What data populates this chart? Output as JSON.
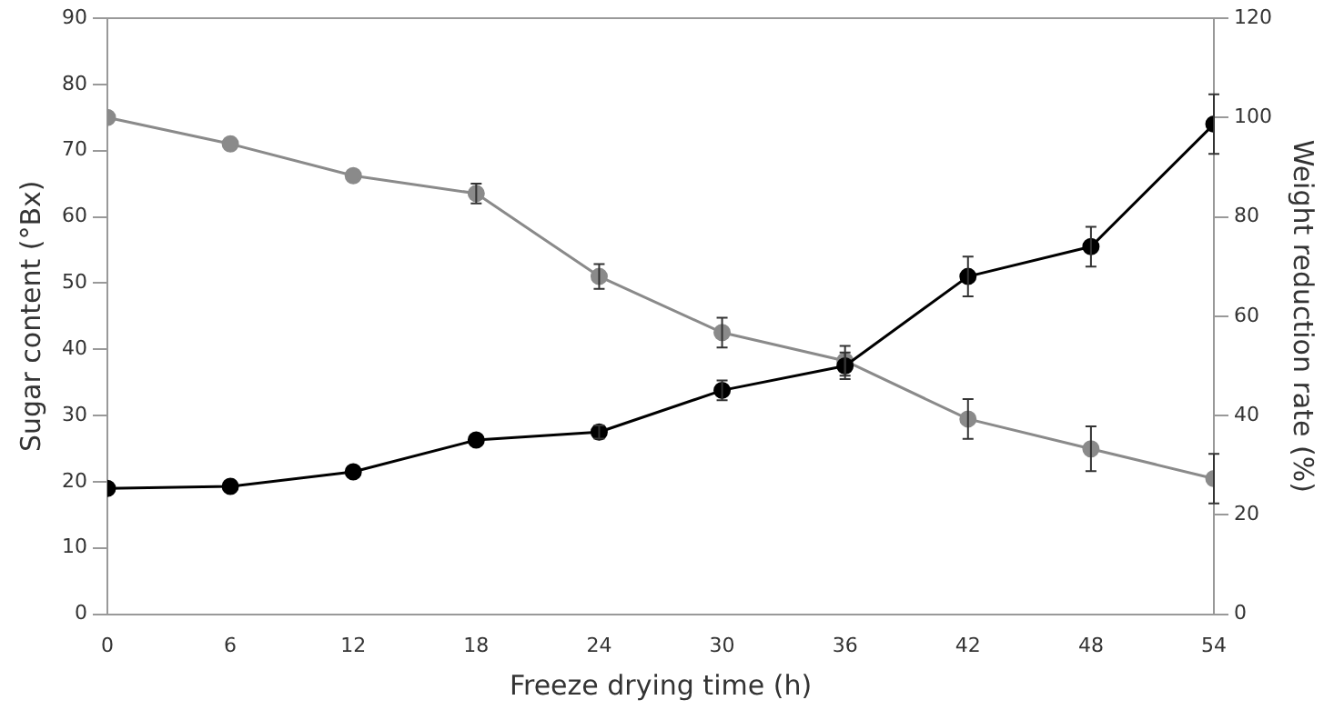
{
  "chart_data": {
    "type": "line",
    "xlabel": "Freeze drying time (h)",
    "ylabel": "Sugar content (°Bx)",
    "y2label": "Weight reduction rate (%)",
    "x": [
      0,
      6,
      12,
      18,
      24,
      30,
      36,
      42,
      48,
      54
    ],
    "xlim": [
      0,
      54
    ],
    "xticks": [
      0,
      6,
      12,
      18,
      24,
      30,
      36,
      42,
      48,
      54
    ],
    "ylim": [
      0,
      90
    ],
    "yticks": [
      0,
      10,
      20,
      30,
      40,
      50,
      60,
      70,
      80,
      90
    ],
    "y2lim": [
      0,
      120
    ],
    "y2ticks": [
      0,
      20,
      40,
      60,
      80,
      100,
      120
    ],
    "grid": false,
    "legend": false,
    "marker": "circle",
    "line_style": "solid",
    "series": [
      {
        "color": "#000000",
        "values": [
          19,
          19.3,
          21.5,
          26.3,
          27.5,
          33.8,
          37.5,
          51,
          55.5,
          74
        ],
        "errors": [
          null,
          null,
          null,
          null,
          1,
          1.5,
          2,
          3,
          3,
          4.5
        ]
      },
      {
        "color": "#8a8a8a",
        "axis": "y2",
        "values": [
          100,
          94.7,
          88.3,
          84.7,
          68,
          56.7,
          51,
          39.3,
          33.3,
          27.3
        ],
        "errors": [
          null,
          null,
          null,
          2,
          2.5,
          3,
          3,
          4,
          4.5,
          5
        ]
      }
    ]
  }
}
